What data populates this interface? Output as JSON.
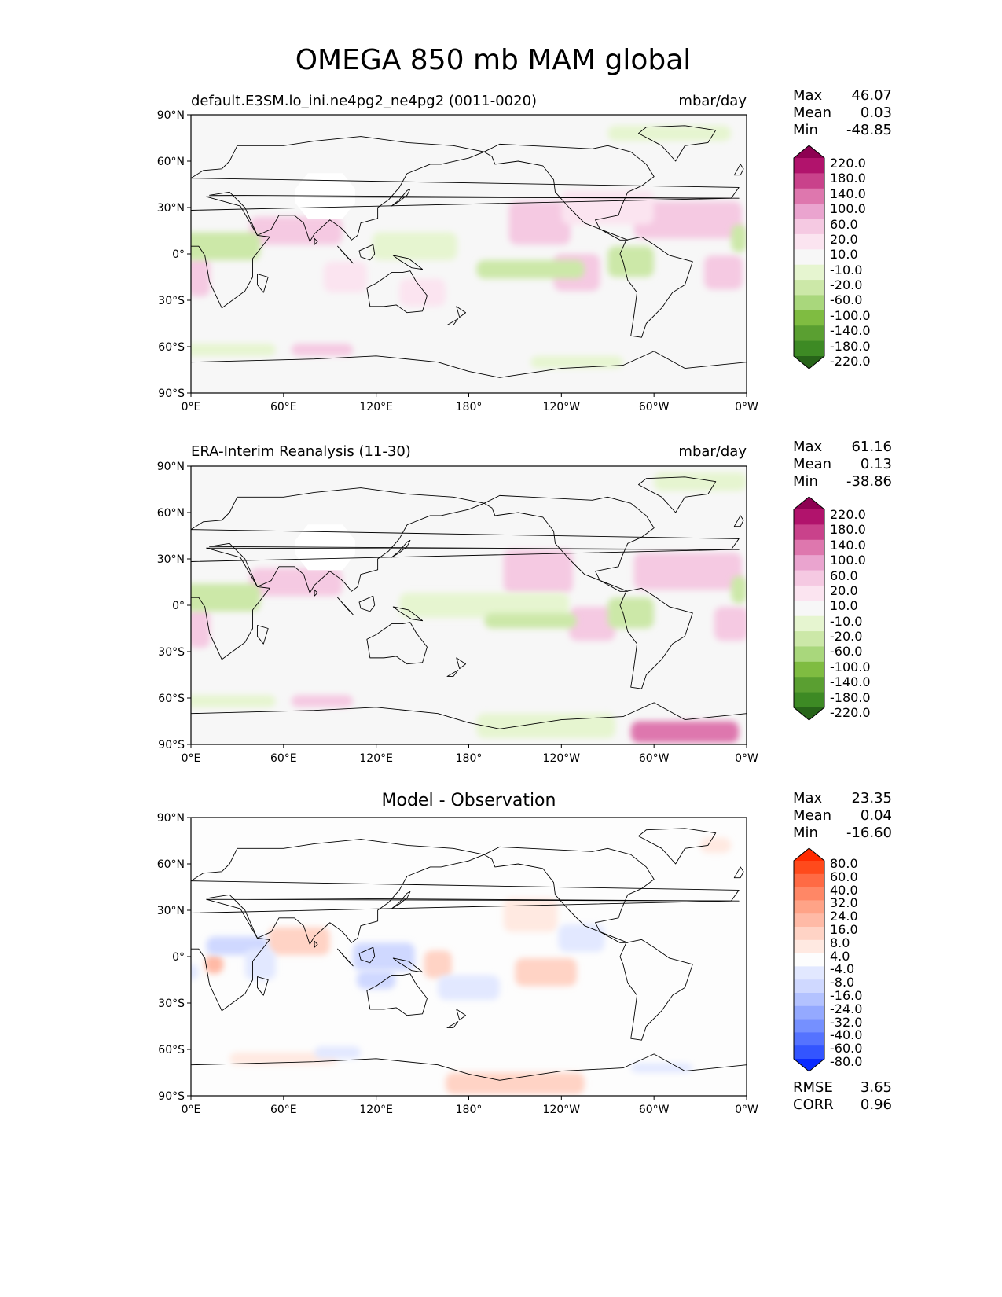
{
  "figure": {
    "title": "OMEGA 850 mb MAM global"
  },
  "axes": {
    "lat_ticks": [
      "90°N",
      "60°N",
      "30°N",
      "0°",
      "30°S",
      "60°S",
      "90°S"
    ],
    "lon_ticks": [
      "0°E",
      "60°E",
      "120°E",
      "180°",
      "120°W",
      "60°W",
      "0°W"
    ]
  },
  "panels": [
    {
      "title": "default.E3SM.lo_ini.ne4pg2_ne4pg2 (0011-0020)",
      "units": "mbar/day",
      "stats": {
        "max": "46.07",
        "mean": "0.03",
        "min": "-48.85"
      }
    },
    {
      "title": "ERA-Interim Reanalysis (11-30)",
      "units": "mbar/day",
      "stats": {
        "max": "61.16",
        "mean": "0.13",
        "min": "-38.86"
      }
    },
    {
      "title": "Model - Observation",
      "units": "",
      "stats": {
        "max": "23.35",
        "mean": "0.04",
        "min": "-16.60"
      },
      "rmse": "3.65",
      "corr": "0.96"
    }
  ],
  "stat_labels": {
    "max": "Max",
    "mean": "Mean",
    "min": "Min",
    "rmse": "RMSE",
    "corr": "CORR"
  },
  "colorbars": {
    "field": {
      "labels": [
        "220.0",
        "180.0",
        "140.0",
        "100.0",
        "60.0",
        "20.0",
        "10.0",
        "-10.0",
        "-20.0",
        "-60.0",
        "-100.0",
        "-140.0",
        "-180.0",
        "-220.0"
      ],
      "colors": [
        "#8e0152",
        "#b1136c",
        "#c9428b",
        "#de77ae",
        "#eaa4cf",
        "#f5c9e2",
        "#fbe4f0",
        "#f7f7f7",
        "#e6f5d0",
        "#cce8a8",
        "#a9d77c",
        "#7fbc41",
        "#5a9f31",
        "#3d8a24",
        "#276419"
      ]
    },
    "diff": {
      "labels": [
        "80.0",
        "60.0",
        "40.0",
        "32.0",
        "24.0",
        "16.0",
        "8.0",
        "4.0",
        "-4.0",
        "-8.0",
        "-16.0",
        "-24.0",
        "-32.0",
        "-40.0",
        "-60.0",
        "-80.0"
      ],
      "colors": [
        "#ff2a00",
        "#ff4a1c",
        "#ff6a44",
        "#ff8766",
        "#ffa387",
        "#ffbaa6",
        "#ffd3c5",
        "#ffe9e1",
        "#fdfdfd",
        "#e2e8ff",
        "#cfd8ff",
        "#b3c2ff",
        "#94a9ff",
        "#7590ff",
        "#5573ff",
        "#3355ff",
        "#0a2aff"
      ]
    }
  },
  "map_fields": {
    "panel1": [
      {
        "lon": 68,
        "lat": 15,
        "w": 60,
        "h": 18,
        "c": "#f5c9e2"
      },
      {
        "lon": 226,
        "lat": 20,
        "w": 40,
        "h": 28,
        "c": "#f5c9e2"
      },
      {
        "lon": 322,
        "lat": 22,
        "w": 70,
        "h": 24,
        "c": "#f5c9e2"
      },
      {
        "lon": 250,
        "lat": -12,
        "w": 30,
        "h": 24,
        "c": "#f5c9e2"
      },
      {
        "lon": 5,
        "lat": -15,
        "w": 15,
        "h": 25,
        "c": "#f5c9e2"
      },
      {
        "lon": 345,
        "lat": -12,
        "w": 25,
        "h": 22,
        "c": "#f5c9e2"
      },
      {
        "lon": 100,
        "lat": -15,
        "w": 28,
        "h": 20,
        "c": "#fbe4f0"
      },
      {
        "lon": 150,
        "lat": -25,
        "w": 30,
        "h": 18,
        "c": "#fbe4f0"
      },
      {
        "lon": 85,
        "lat": -62,
        "w": 40,
        "h": 8,
        "c": "#f5c9e2"
      },
      {
        "lon": 270,
        "lat": 30,
        "w": 60,
        "h": 22,
        "c": "#fbe4f0"
      },
      {
        "lon": 20,
        "lat": 5,
        "w": 50,
        "h": 18,
        "c": "#cce8a8"
      },
      {
        "lon": 220,
        "lat": -10,
        "w": 70,
        "h": 12,
        "c": "#cce8a8"
      },
      {
        "lon": 285,
        "lat": -5,
        "w": 30,
        "h": 20,
        "c": "#cce8a8"
      },
      {
        "lon": 145,
        "lat": 5,
        "w": 55,
        "h": 18,
        "c": "#e6f5d0"
      },
      {
        "lon": 310,
        "lat": 78,
        "w": 80,
        "h": 10,
        "c": "#e6f5d0"
      },
      {
        "lon": 20,
        "lat": -62,
        "w": 70,
        "h": 8,
        "c": "#e6f5d0"
      },
      {
        "lon": 250,
        "lat": -70,
        "w": 60,
        "h": 8,
        "c": "#e6f5d0"
      },
      {
        "lon": 355,
        "lat": 10,
        "w": 10,
        "h": 18,
        "c": "#cce8a8"
      }
    ],
    "panel2": [
      {
        "lon": 68,
        "lat": 15,
        "w": 60,
        "h": 18,
        "c": "#f5c9e2"
      },
      {
        "lon": 225,
        "lat": 22,
        "w": 45,
        "h": 28,
        "c": "#f5c9e2"
      },
      {
        "lon": 322,
        "lat": 22,
        "w": 70,
        "h": 24,
        "c": "#f5c9e2"
      },
      {
        "lon": 260,
        "lat": -12,
        "w": 30,
        "h": 22,
        "c": "#f5c9e2"
      },
      {
        "lon": 5,
        "lat": -15,
        "w": 15,
        "h": 25,
        "c": "#f5c9e2"
      },
      {
        "lon": 350,
        "lat": -12,
        "w": 22,
        "h": 22,
        "c": "#f5c9e2"
      },
      {
        "lon": 85,
        "lat": -62,
        "w": 40,
        "h": 8,
        "c": "#f5c9e2"
      },
      {
        "lon": 320,
        "lat": -82,
        "w": 70,
        "h": 14,
        "c": "#de77ae"
      },
      {
        "lon": 20,
        "lat": 5,
        "w": 50,
        "h": 18,
        "c": "#cce8a8"
      },
      {
        "lon": 190,
        "lat": 0,
        "w": 110,
        "h": 16,
        "c": "#e6f5d0"
      },
      {
        "lon": 220,
        "lat": -10,
        "w": 60,
        "h": 10,
        "c": "#cce8a8"
      },
      {
        "lon": 285,
        "lat": -5,
        "w": 30,
        "h": 20,
        "c": "#cce8a8"
      },
      {
        "lon": 330,
        "lat": 80,
        "w": 60,
        "h": 12,
        "c": "#e6f5d0"
      },
      {
        "lon": 20,
        "lat": -62,
        "w": 70,
        "h": 8,
        "c": "#e6f5d0"
      },
      {
        "lon": 230,
        "lat": -78,
        "w": 90,
        "h": 16,
        "c": "#e6f5d0"
      },
      {
        "lon": 355,
        "lat": 10,
        "w": 10,
        "h": 18,
        "c": "#cce8a8"
      }
    ],
    "panel3": [
      {
        "lon": 70,
        "lat": 10,
        "w": 40,
        "h": 18,
        "c": "#ffd3c5"
      },
      {
        "lon": 15,
        "lat": -5,
        "w": 12,
        "h": 12,
        "c": "#ffbaa6"
      },
      {
        "lon": 160,
        "lat": -5,
        "w": 18,
        "h": 18,
        "c": "#ffd3c5"
      },
      {
        "lon": 230,
        "lat": -10,
        "w": 40,
        "h": 18,
        "c": "#ffd3c5"
      },
      {
        "lon": 220,
        "lat": 27,
        "w": 35,
        "h": 22,
        "c": "#ffe9e1"
      },
      {
        "lon": 210,
        "lat": -82,
        "w": 90,
        "h": 14,
        "c": "#ffd3c5"
      },
      {
        "lon": 60,
        "lat": -66,
        "w": 70,
        "h": 8,
        "c": "#ffe9e1"
      },
      {
        "lon": 340,
        "lat": 72,
        "w": 20,
        "h": 10,
        "c": "#ffe9e1"
      },
      {
        "lon": 30,
        "lat": 7,
        "w": 40,
        "h": 12,
        "c": "#cfd8ff"
      },
      {
        "lon": 45,
        "lat": -5,
        "w": 20,
        "h": 20,
        "c": "#e2e8ff"
      },
      {
        "lon": 125,
        "lat": 0,
        "w": 40,
        "h": 18,
        "c": "#cfd8ff"
      },
      {
        "lon": 120,
        "lat": -15,
        "w": 25,
        "h": 12,
        "c": "#cfd8ff"
      },
      {
        "lon": 180,
        "lat": -20,
        "w": 40,
        "h": 16,
        "c": "#e2e8ff"
      },
      {
        "lon": 253,
        "lat": 12,
        "w": 30,
        "h": 18,
        "c": "#e2e8ff"
      },
      {
        "lon": 95,
        "lat": -62,
        "w": 30,
        "h": 8,
        "c": "#e2e8ff"
      },
      {
        "lon": 305,
        "lat": -72,
        "w": 40,
        "h": 6,
        "c": "#e2e8ff"
      },
      {
        "lon": 0,
        "lat": -10,
        "w": 10,
        "h": 10,
        "c": "#e2e8ff"
      }
    ]
  }
}
